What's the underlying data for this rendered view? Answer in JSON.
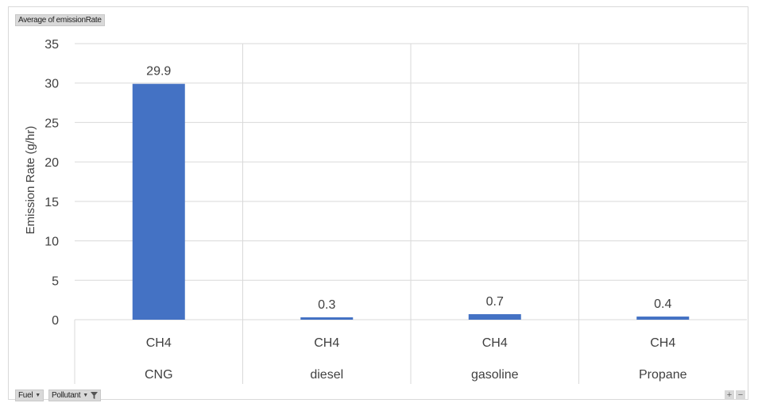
{
  "chart_data": {
    "type": "bar",
    "value_field": "Average of emissionRate",
    "ylabel": "Emission Rate (g/hr)",
    "ylim": [
      0,
      35
    ],
    "yticks": [
      0,
      5,
      10,
      15,
      20,
      25,
      30,
      35
    ],
    "categories": [
      {
        "inner": "CH4",
        "outer": "CNG"
      },
      {
        "inner": "CH4",
        "outer": "diesel"
      },
      {
        "inner": "CH4",
        "outer": "gasoline"
      },
      {
        "inner": "CH4",
        "outer": "Propane"
      }
    ],
    "values": [
      29.9,
      0.3,
      0.7,
      0.4
    ],
    "data_labels": [
      "29.9",
      "0.3",
      "0.7",
      "0.4"
    ],
    "bar_color": "#4472c4",
    "grid": true,
    "legend": "none"
  },
  "filters": {
    "fuel_label": "Fuel",
    "pollutant_label": "Pollutant"
  },
  "zoom": {
    "plus": "+",
    "minus": "−"
  }
}
